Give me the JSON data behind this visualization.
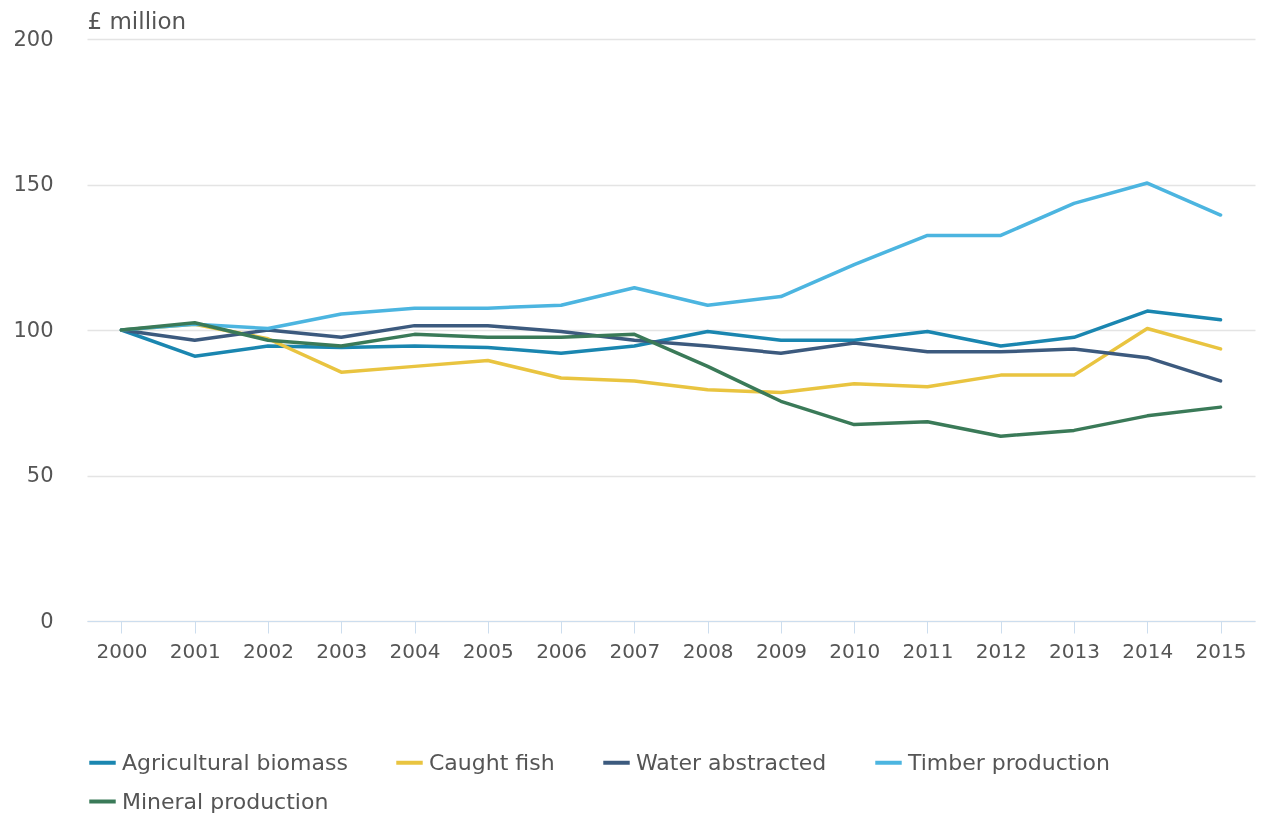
{
  "chart_data": {
    "type": "line",
    "ylabel": "£ million",
    "categories": [
      "2000",
      "2001",
      "2002",
      "2003",
      "2004",
      "2005",
      "2006",
      "2007",
      "2008",
      "2009",
      "2010",
      "2011",
      "2012",
      "2013",
      "2014",
      "2015"
    ],
    "series": [
      {
        "name": "Agricultural biomass",
        "color": "#1a86b0",
        "values": [
          100,
          91,
          94.5,
          94,
          94.5,
          94,
          92,
          94.5,
          99.5,
          96.5,
          96.5,
          99.5,
          94.5,
          97.5,
          106.5,
          103.5
        ]
      },
      {
        "name": "Caught fish",
        "color": "#e9c440",
        "values": [
          100,
          102,
          97,
          85.5,
          87.5,
          89.5,
          83.5,
          82.5,
          79.5,
          78.5,
          81.5,
          80.5,
          84.5,
          84.5,
          100.5,
          93.5
        ]
      },
      {
        "name": "Water abstracted",
        "color": "#3c5a7e",
        "values": [
          100,
          96.5,
          100,
          97.5,
          101.5,
          101.5,
          99.5,
          96.5,
          94.5,
          92,
          95.5,
          92.5,
          92.5,
          93.5,
          90.5,
          82.5
        ]
      },
      {
        "name": "Timber production",
        "color": "#4cb5e0",
        "values": [
          100,
          102,
          100.5,
          105.5,
          107.5,
          107.5,
          108.5,
          114.5,
          108.5,
          111.5,
          122.5,
          132.5,
          132.5,
          143.5,
          150.5,
          139.5
        ]
      },
      {
        "name": "Mineral production",
        "color": "#3a7a58",
        "values": [
          100,
          102.5,
          96.5,
          94.5,
          98.5,
          97.5,
          97.5,
          98.5,
          87.5,
          75.5,
          67.5,
          68.5,
          63.5,
          65.5,
          70.5,
          73.5
        ]
      }
    ],
    "ylim": [
      0,
      200
    ],
    "yticks": [
      0,
      50,
      100,
      150,
      200
    ],
    "grid": "y",
    "legend": "bottom"
  }
}
